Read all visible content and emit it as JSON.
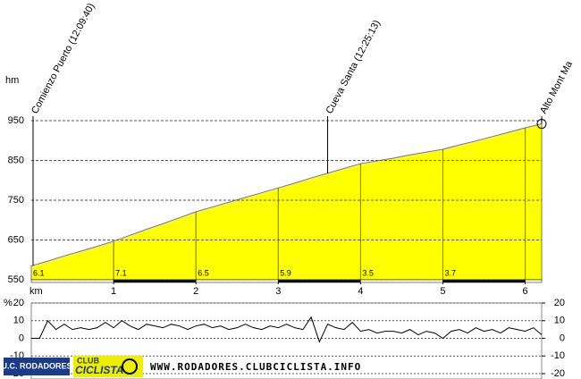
{
  "chart_data": [
    {
      "type": "area",
      "y_label": "hm",
      "x_label": "km",
      "x": [
        0,
        0.2,
        0.4,
        0.6,
        0.8,
        1.0,
        1.2,
        1.4,
        1.6,
        1.8,
        2.0,
        2.2,
        2.4,
        2.6,
        2.8,
        3.0,
        3.2,
        3.4,
        3.6,
        3.8,
        4.0,
        4.2,
        4.4,
        4.6,
        4.8,
        5.0,
        5.2,
        5.4,
        5.6,
        5.8,
        6.0,
        6.2
      ],
      "values": [
        585,
        597,
        610,
        622,
        634,
        647,
        662,
        677,
        691,
        706,
        721,
        733,
        745,
        757,
        769,
        781,
        793,
        806,
        818,
        830,
        842,
        849,
        856,
        864,
        871,
        878,
        889,
        899,
        910,
        921,
        932,
        942
      ],
      "color": "#ffff00",
      "xlim": [
        0,
        6.2
      ],
      "ylim": [
        550,
        950
      ],
      "xticks": [
        1,
        2,
        3,
        4,
        5,
        6
      ],
      "yticks": [
        550,
        650,
        750,
        850,
        950
      ],
      "grid": true,
      "gradient_labels": {
        "x": [
          0,
          1,
          2,
          3,
          4,
          5
        ],
        "values": [
          6.1,
          7.1,
          6.5,
          5.9,
          3.5,
          3.7
        ]
      },
      "annotations": [
        {
          "text": "Comienzo Puerto (12:09:40)",
          "x": 0
        },
        {
          "text": "Cueva Santa (12:25:13)",
          "x": 3.6
        },
        {
          "text": "Alto Mont Ma",
          "x": 6.2
        }
      ]
    },
    {
      "type": "line",
      "y_label": "%",
      "x": [
        0,
        0.1,
        0.2,
        0.3,
        0.4,
        0.5,
        0.6,
        0.7,
        0.8,
        0.9,
        1.0,
        1.1,
        1.2,
        1.3,
        1.4,
        1.5,
        1.6,
        1.7,
        1.8,
        1.9,
        2.0,
        2.1,
        2.2,
        2.3,
        2.4,
        2.5,
        2.6,
        2.7,
        2.8,
        2.9,
        3.0,
        3.1,
        3.2,
        3.3,
        3.4,
        3.5,
        3.6,
        3.7,
        3.8,
        3.9,
        4.0,
        4.1,
        4.2,
        4.3,
        4.4,
        4.5,
        4.6,
        4.7,
        4.8,
        4.9,
        5.0,
        5.1,
        5.2,
        5.3,
        5.4,
        5.5,
        5.6,
        5.7,
        5.8,
        5.9,
        6.0,
        6.1,
        6.2
      ],
      "values": [
        0,
        0,
        10,
        5,
        8,
        5,
        6,
        5,
        6,
        9,
        6,
        10,
        7,
        5,
        8,
        7,
        6,
        8,
        7,
        5,
        7,
        8,
        6,
        7,
        5,
        6,
        8,
        6,
        5,
        7,
        6,
        8,
        6,
        5,
        12,
        -2,
        8,
        6,
        5,
        9,
        4,
        5,
        3,
        4,
        4,
        3,
        5,
        2,
        4,
        3,
        0,
        4,
        5,
        3,
        6,
        4,
        5,
        3,
        6,
        5,
        4,
        6,
        2
      ],
      "color": "#000000",
      "xlim": [
        0,
        6.2
      ],
      "ylim": [
        -20,
        20
      ],
      "yticks": [
        -20,
        -10,
        0,
        10,
        20
      ],
      "y2lim": [
        -20,
        20
      ],
      "y2ticks": [
        -20,
        -10,
        0,
        10,
        20
      ],
      "grid": true
    }
  ],
  "footer": {
    "badge": "U.C. RODADORES",
    "brand_top": "CLUB",
    "brand": "CICLISTA",
    "url": "WWW.RODADORES.CLUBCICLISTA.INFO"
  }
}
